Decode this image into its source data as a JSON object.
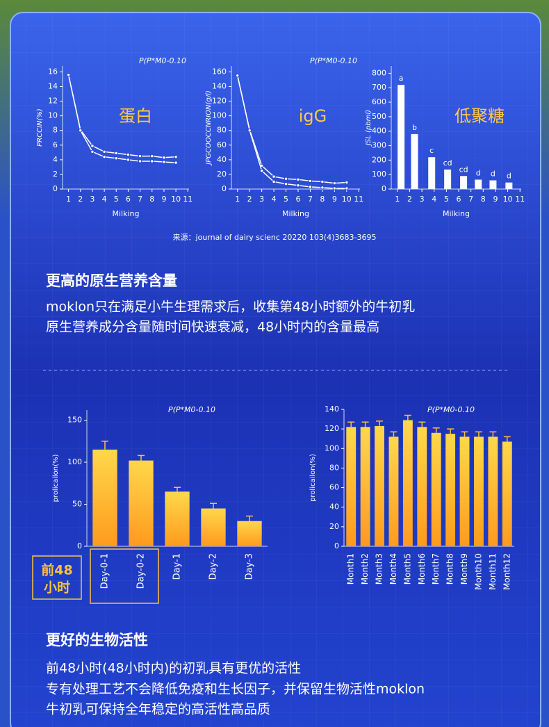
{
  "chart_data": [
    {
      "type": "line",
      "title": "蛋白",
      "annotation": "P(P*M0-0.10",
      "y_label": "PRCCIN(%)",
      "x_label": "Milking",
      "x": [
        1,
        2,
        3,
        4,
        5,
        6,
        7,
        8,
        9,
        10
      ],
      "xlim": [
        0.5,
        11.1
      ],
      "xticks": [
        1,
        2,
        3,
        4,
        5,
        6,
        7,
        8,
        9,
        10,
        11
      ],
      "ylim": [
        0,
        16.8
      ],
      "yticks": [
        0,
        2,
        4,
        6,
        8,
        10,
        12,
        14,
        16
      ],
      "color": "#ffffff",
      "series": [
        {
          "values": [
            15.6,
            8.1,
            5.9,
            5.1,
            4.9,
            4.7,
            4.5,
            4.5,
            4.3,
            4.4
          ]
        },
        {
          "values": [
            15.6,
            8.0,
            5.1,
            4.4,
            4.2,
            4.0,
            3.8,
            3.8,
            3.7,
            3.6
          ]
        }
      ]
    },
    {
      "type": "line",
      "title": "igG",
      "annotation": "P(P*M0-0.10",
      "y_label": "JPGCOOCCNRION(g/l)",
      "x_label": "Milking",
      "x": [
        1,
        2,
        3,
        4,
        5,
        6,
        7,
        8,
        9,
        10
      ],
      "xlim": [
        0.5,
        11.1
      ],
      "xticks": [
        1,
        2,
        3,
        4,
        5,
        6,
        7,
        8,
        9,
        10,
        11
      ],
      "ylim": [
        0,
        168
      ],
      "yticks": [
        0,
        20,
        40,
        60,
        80,
        100,
        120,
        140,
        160
      ],
      "color": "#ffffff",
      "series": [
        {
          "values": [
            155,
            81,
            32,
            17,
            14,
            13,
            11,
            10,
            8,
            9
          ]
        },
        {
          "values": [
            155,
            80,
            25,
            10,
            7,
            5,
            3,
            2,
            1,
            1
          ]
        }
      ]
    },
    {
      "type": "bar",
      "title": "低聚糖",
      "y_label": "JSL (pbml)",
      "x_label": "Milking",
      "x": [
        1.3,
        2.4,
        3.8,
        5.1,
        6.4,
        7.6,
        8.8,
        10.1
      ],
      "xlim": [
        0.5,
        11.1
      ],
      "xticks": [
        1,
        2,
        3,
        4,
        5,
        6,
        7,
        8,
        9,
        10,
        11
      ],
      "ylim": [
        0,
        850
      ],
      "yticks": [
        0,
        100,
        200,
        300,
        400,
        500,
        600,
        700,
        800
      ],
      "color": "#ffffff",
      "values": [
        720,
        380,
        220,
        135,
        90,
        65,
        60,
        45
      ],
      "bar_labels": [
        "a",
        "b",
        "c",
        "cd",
        "cd",
        "d",
        "d",
        "d"
      ]
    },
    {
      "type": "bar",
      "annotation": "P(P*M0-0.10",
      "y_label": "prolicailon(%)",
      "categories": [
        "Day-0-1",
        "Day-0-2",
        "Day-1",
        "Day-2",
        "Day-3"
      ],
      "values": [
        115,
        102,
        65,
        45,
        30
      ],
      "errors": [
        10,
        6,
        5,
        6,
        6
      ],
      "ylim": [
        0,
        162
      ],
      "yticks": [
        0,
        50,
        100,
        150
      ],
      "color": "#ffb52e"
    },
    {
      "type": "bar",
      "annotation": "P(P*M0-0.10",
      "y_label": "prolicailon(%)",
      "categories": [
        "Month1",
        "Month2",
        "Month3",
        "Month4",
        "Month5",
        "Month6",
        "Month7",
        "Month8",
        "Month9",
        "Month10",
        "Month11",
        "Month12"
      ],
      "values": [
        122,
        122,
        123,
        112,
        129,
        122,
        116,
        115,
        112,
        112,
        112,
        107
      ],
      "errors": [
        5,
        5,
        5,
        5,
        5,
        5,
        5,
        5,
        5,
        5,
        5,
        5
      ],
      "ylim": [
        0,
        140
      ],
      "yticks": [
        0,
        20,
        40,
        60,
        80,
        100,
        120,
        140
      ],
      "color": "#ffb52e"
    }
  ],
  "source": "来源：journal of dairy scienc 20220 103(4)3683-3695",
  "section_1": {
    "heading": "更高的原生营养含量",
    "lines": [
      "moklon只在满足小牛生理需求后，收集第48小时额外的牛初乳",
      "原生营养成分含量随时间快速衰减，48小时内的含量最高"
    ]
  },
  "badge": {
    "lines": [
      "前48",
      "小时"
    ]
  },
  "section_2": {
    "heading": "更好的生物活性",
    "lines": [
      "前48小时(48小时内)的初乳具有更优的活性",
      "专有处理工艺不会降低免疫和生长因子，并保留生物活性moklon",
      "牛初乳可保持全年稳定的高活性高品质"
    ]
  }
}
